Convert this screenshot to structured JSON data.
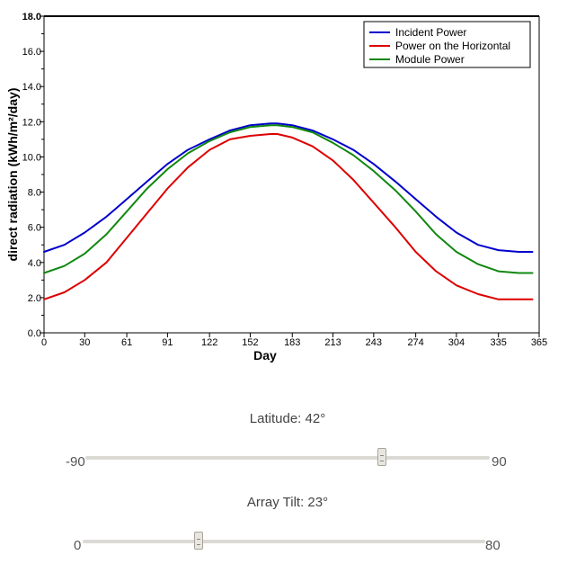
{
  "chart_data": {
    "type": "line",
    "xlabel": "Day",
    "ylabel": "direct radiation (kWh/m²/day)",
    "xlim": [
      0,
      365
    ],
    "ylim": [
      0,
      18
    ],
    "x_ticks": [
      0,
      30,
      61,
      91,
      122,
      152,
      183,
      213,
      243,
      274,
      304,
      335,
      365
    ],
    "y_ticks": [
      "0.0",
      "2.0",
      "4.0",
      "6.0",
      "8.0",
      "10.0",
      "12.0",
      "14.0",
      "16.0",
      "18.0"
    ],
    "legend_position": "top-right",
    "series": [
      {
        "name": "Incident Power",
        "color": "#0000cc",
        "x": [
          0,
          15,
          30,
          46,
          61,
          76,
          91,
          106,
          122,
          137,
          152,
          167,
          172,
          183,
          198,
          213,
          228,
          243,
          259,
          274,
          289,
          304,
          320,
          335,
          350,
          360
        ],
        "y": [
          4.6,
          5.0,
          5.7,
          6.6,
          7.6,
          8.6,
          9.6,
          10.4,
          11.0,
          11.5,
          11.8,
          11.9,
          11.9,
          11.8,
          11.5,
          11.0,
          10.4,
          9.6,
          8.6,
          7.6,
          6.6,
          5.7,
          5.0,
          4.7,
          4.6,
          4.6
        ]
      },
      {
        "name": "Power on the Horizontal",
        "color": "#dd0000",
        "x": [
          0,
          15,
          30,
          46,
          61,
          76,
          91,
          106,
          122,
          137,
          152,
          167,
          172,
          183,
          198,
          213,
          228,
          243,
          259,
          274,
          289,
          304,
          320,
          335,
          350,
          360
        ],
        "y": [
          1.9,
          2.3,
          3.0,
          4.0,
          5.4,
          6.8,
          8.2,
          9.4,
          10.4,
          11.0,
          11.2,
          11.3,
          11.3,
          11.1,
          10.6,
          9.8,
          8.7,
          7.4,
          6.0,
          4.6,
          3.5,
          2.7,
          2.2,
          1.9,
          1.9,
          1.9
        ]
      },
      {
        "name": "Module Power",
        "color": "#118811",
        "x": [
          0,
          15,
          30,
          46,
          61,
          76,
          91,
          106,
          122,
          137,
          152,
          167,
          172,
          183,
          198,
          213,
          228,
          243,
          259,
          274,
          289,
          304,
          320,
          335,
          350,
          360
        ],
        "y": [
          3.4,
          3.8,
          4.5,
          5.6,
          6.9,
          8.2,
          9.3,
          10.2,
          10.9,
          11.4,
          11.7,
          11.8,
          11.8,
          11.7,
          11.4,
          10.8,
          10.1,
          9.2,
          8.1,
          6.9,
          5.6,
          4.6,
          3.9,
          3.5,
          3.4,
          3.4
        ]
      }
    ]
  },
  "sliders": {
    "latitude": {
      "label": "Latitude: 42°",
      "min_label": "-90",
      "max_label": "90",
      "min": -90,
      "max": 90,
      "value": 42
    },
    "tilt": {
      "label": "Array Tilt: 23°",
      "min_label": "0",
      "max_label": "80",
      "min": 0,
      "max": 80,
      "value": 23
    }
  }
}
